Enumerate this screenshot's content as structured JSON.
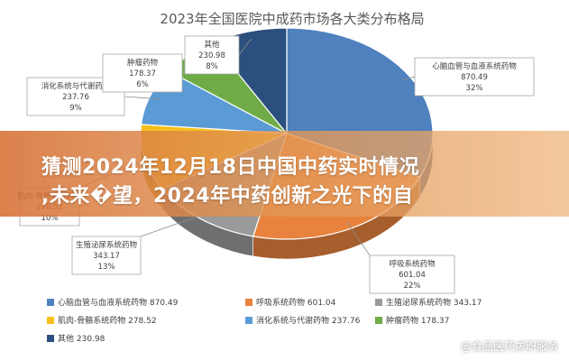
{
  "chart_data": {
    "type": "pie",
    "title": "2023年全国医院中成药市场各大类分布格局",
    "slices": [
      {
        "name": "心脑血管与血液系统药物",
        "value": "870.49",
        "percent": "32%",
        "color": "#4e81bd"
      },
      {
        "name": "呼吸系统药物",
        "value": "601.04",
        "percent": "22%",
        "color": "#e8823e"
      },
      {
        "name": "生殖泌尿系统药物",
        "value": "343.17",
        "percent": "13%",
        "color": "#9a9a9a"
      },
      {
        "name": "肌肉-骨骼系统药物",
        "value": "278.52",
        "percent": "10%",
        "color": "#f5c01c"
      },
      {
        "name": "消化系统与代谢药物",
        "value": "237.76",
        "percent": "9%",
        "color": "#5a9bd5"
      },
      {
        "name": "肿瘤药物",
        "value": "178.37",
        "percent": "6%",
        "color": "#6fac47"
      },
      {
        "name": "其他",
        "value": "230.98",
        "percent": "8%",
        "color": "#2b4f7e"
      }
    ],
    "legend": [
      {
        "label": "心脑血管与血液系统药物 870.49",
        "color": "#4e81bd"
      },
      {
        "label": "呼吸系统药物 601.04",
        "color": "#e8823e"
      },
      {
        "label": "生殖泌尿系统药物 343.17",
        "color": "#9a9a9a"
      },
      {
        "label": "肌肉-骨骼系统药物 278.52",
        "color": "#f5c01c"
      },
      {
        "label": "消化系统与代谢药物 237.76",
        "color": "#5a9bd5"
      },
      {
        "label": "肿瘤药物 178.37",
        "color": "#6fac47"
      },
      {
        "label": "其他 230.98",
        "color": "#2b4f7e"
      }
    ],
    "legend_position": "bottom"
  },
  "banner": {
    "line1": "猜测2024年12月18日中国中药实时情况",
    "line2": ",未来�望，2024年中药创新之光下的自"
  },
  "watermark": {
    "text": "@食品医药求职服务",
    "icon": "wechat-icon"
  }
}
